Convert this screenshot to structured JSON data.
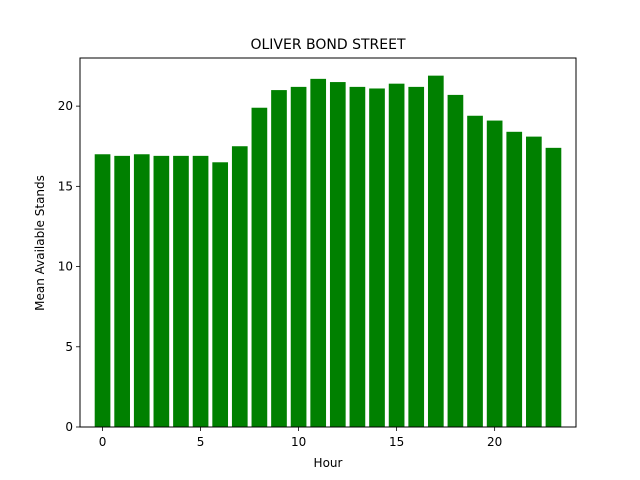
{
  "chart_data": {
    "type": "bar",
    "title": "OLIVER BOND STREET",
    "xlabel": "Hour",
    "ylabel": "Mean Available Stands",
    "x": [
      0,
      1,
      2,
      3,
      4,
      5,
      6,
      7,
      8,
      9,
      10,
      11,
      12,
      13,
      14,
      15,
      16,
      17,
      18,
      19,
      20,
      21,
      22,
      23
    ],
    "values": [
      17.0,
      16.9,
      17.0,
      16.9,
      16.9,
      16.9,
      16.5,
      17.5,
      19.9,
      21.0,
      21.2,
      21.7,
      21.5,
      21.2,
      21.1,
      21.4,
      21.2,
      21.9,
      20.7,
      19.4,
      19.1,
      18.4,
      18.1,
      17.4
    ],
    "xlim": [
      -1.15,
      24.15
    ],
    "ylim": [
      0,
      23
    ],
    "xticks": [
      0,
      5,
      10,
      15,
      20
    ],
    "yticks": [
      0,
      5,
      10,
      15,
      20
    ],
    "bar_color": "#008000",
    "grid": false
  }
}
